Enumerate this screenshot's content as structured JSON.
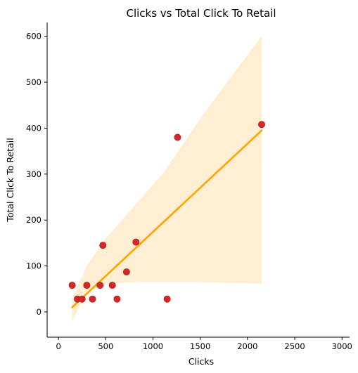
{
  "chart_data": {
    "type": "scatter",
    "title": "Clicks vs Total Click To Retail",
    "xlabel": "Clicks",
    "ylabel": "Total Click To Retail",
    "xlim": [
      -120,
      3080
    ],
    "ylim": [
      -55,
      630
    ],
    "x_ticks": [
      0,
      500,
      1000,
      1500,
      2000,
      2500,
      3000
    ],
    "y_ticks": [
      0,
      100,
      200,
      300,
      400,
      500,
      600
    ],
    "points": [
      {
        "x": 145,
        "y": 58
      },
      {
        "x": 200,
        "y": 28
      },
      {
        "x": 250,
        "y": 28
      },
      {
        "x": 300,
        "y": 58
      },
      {
        "x": 360,
        "y": 28
      },
      {
        "x": 440,
        "y": 58
      },
      {
        "x": 470,
        "y": 145
      },
      {
        "x": 570,
        "y": 58
      },
      {
        "x": 620,
        "y": 28
      },
      {
        "x": 720,
        "y": 87
      },
      {
        "x": 820,
        "y": 152
      },
      {
        "x": 1150,
        "y": 28
      },
      {
        "x": 1260,
        "y": 380
      },
      {
        "x": 2150,
        "y": 408
      }
    ],
    "regression": {
      "x": [
        145,
        2150
      ],
      "y": [
        10,
        395
      ]
    },
    "confidence_band": {
      "x": [
        145,
        300,
        500,
        800,
        1100,
        1300,
        1500,
        1800,
        2150
      ],
      "upper": [
        30,
        100,
        160,
        230,
        300,
        360,
        420,
        505,
        600
      ],
      "lower": [
        -22,
        45,
        60,
        65,
        65,
        65,
        65,
        63,
        62
      ]
    },
    "colors": {
      "points": "#d62728",
      "point_edge": "#b22222",
      "line": "#ffa500",
      "band": "#ffeed2"
    },
    "grid": false
  }
}
